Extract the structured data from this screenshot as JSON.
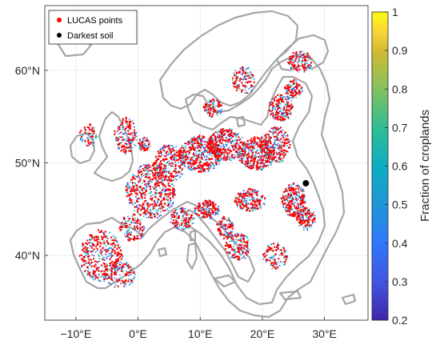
{
  "chart_data": {
    "type": "scatter",
    "map_region": "Europe",
    "x_axis": {
      "ticks": [
        "−10°E",
        "0°E",
        "10°E",
        "20°E",
        "30°E"
      ],
      "range": [
        -15,
        37
      ]
    },
    "y_axis": {
      "ticks": [
        "60°N",
        "50°N",
        "40°N"
      ],
      "range": [
        33,
        67
      ]
    },
    "grid": true,
    "legend": {
      "position": "top-left",
      "entries": [
        {
          "label": "LUCAS points",
          "color": "#ff0000",
          "marker": "dot"
        },
        {
          "label": "Darkest soil",
          "color": "#000000",
          "marker": "dot"
        }
      ]
    },
    "darkest_soil": {
      "lon": 27.0,
      "lat": 47.8
    },
    "colorbar": {
      "label": "Fraction of croplands",
      "min": 0.2,
      "max": 1,
      "ticks": [
        "1",
        "0.9",
        "0.8",
        "0.7",
        "0.6",
        "0.5",
        "0.4",
        "0.3",
        "0.2"
      ],
      "colormap": [
        "#3e26a8",
        "#4254e0",
        "#2f77fb",
        "#1e95d9",
        "#0daec1",
        "#2dbd96",
        "#84c15f",
        "#d0ba34",
        "#fcd636",
        "#f9fb15"
      ]
    },
    "colors": {
      "coastline": "#a6a6a6",
      "points": "#ff0000",
      "grid": "#e6e6e6"
    }
  }
}
